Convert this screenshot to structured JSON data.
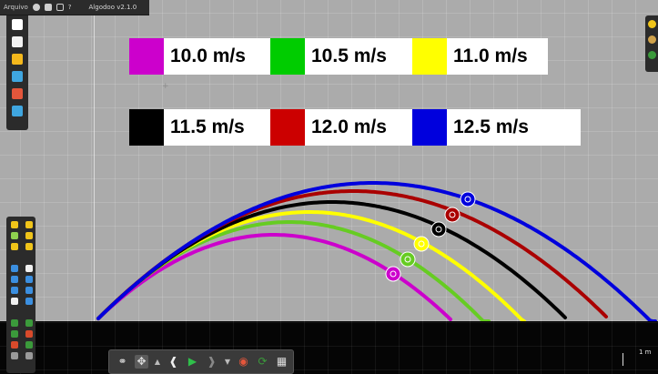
{
  "menu": {
    "file_label": "Arquivo",
    "version": "Algodoo v2.1.0",
    "help_label": "?",
    "icons": [
      "gear-icon",
      "play-icon",
      "window-icon",
      "help-icon"
    ]
  },
  "file_toolbar": {
    "icons": [
      "new-scene-icon",
      "clear-scene-icon",
      "open-folder-icon",
      "open-scene-icon",
      "save-icon",
      "save-as-icon"
    ],
    "colors": [
      "#ffffff",
      "#f2f2f2",
      "#f4b81c",
      "#3fa6e0",
      "#e4563b",
      "#3fa6e0"
    ]
  },
  "tools": {
    "colors": [
      "#f0c419",
      "#f0c419",
      "#8fd14f",
      "#f0c419",
      "#f0c419",
      "#f0c419",
      "",
      "",
      "#3b8fe0",
      "#f0f0f0",
      "#3b8fe0",
      "#3b8fe0",
      "#3b8fe0",
      "#3b8fe0",
      "#f0f0f0",
      "#3b8fe0",
      "",
      "",
      "#3b9a3b",
      "#3b9a3b",
      "#3b9a3b",
      "#d84a2b",
      "#d84a2b",
      "#3b9a3b",
      "#9a9a9a",
      "#9a9a9a"
    ]
  },
  "right_toolbar": {
    "icons": [
      "layers-icon",
      "world-icon",
      "check-icon"
    ],
    "colors": [
      "#f0c419",
      "#d0a24a",
      "#3b9a3b"
    ]
  },
  "controls": {
    "play_color": "#2fbf4a",
    "scale_label": "1 m"
  },
  "legend": [
    {
      "label": "10.0 m/s",
      "color": "#cc00cc"
    },
    {
      "label": "10.5 m/s",
      "color": "#00cc00"
    },
    {
      "label": "11.0 m/s",
      "color": "#ffff00"
    },
    {
      "label": "11.5 m/s",
      "color": "#000000"
    },
    {
      "label": "12.0 m/s",
      "color": "#cc0000"
    },
    {
      "label": "12.5 m/s",
      "color": "#0000dd"
    }
  ],
  "scene": {
    "trajectories": [
      {
        "speed": "10.0 m/s",
        "color": "#cc00cc",
        "has_ball": true
      },
      {
        "speed": "10.5 m/s",
        "color": "#66cc22",
        "has_ball": true
      },
      {
        "speed": "11.0 m/s",
        "color": "#ffff00",
        "has_ball": true
      },
      {
        "speed": "11.5 m/s",
        "color": "#000000",
        "has_ball": true
      },
      {
        "speed": "12.0 m/s",
        "color": "#aa0000",
        "has_ball": true
      },
      {
        "speed": "12.5 m/s",
        "color": "#0000dd",
        "has_ball": true
      }
    ]
  }
}
